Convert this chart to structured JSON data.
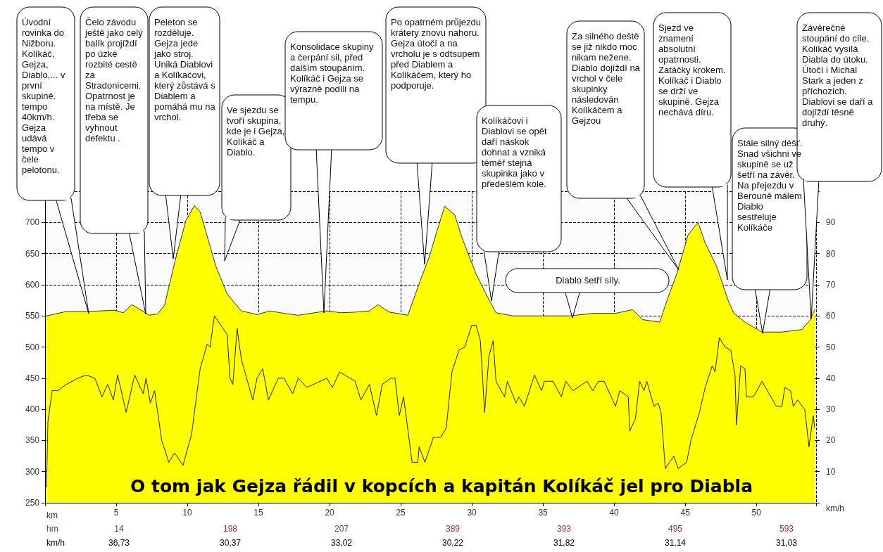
{
  "chart_data": {
    "type": "area",
    "title": "O tom jak Gejza řádil v kopcích a kapitán Kolíkáč jel pro Diabla",
    "xlabel": "km",
    "y2label": "km/h",
    "xlim": [
      0,
      54.2
    ],
    "xticks": [
      5,
      10,
      15,
      20,
      25,
      30,
      35,
      40,
      45,
      50
    ],
    "ylim": [
      250,
      750
    ],
    "yticks": [
      250,
      300,
      350,
      400,
      450,
      500,
      550,
      600,
      650,
      700
    ],
    "y2lim": [
      0,
      100
    ],
    "y2ticks": [
      10,
      20,
      30,
      40,
      50,
      60,
      70,
      80,
      90
    ],
    "grid": true,
    "series": [
      {
        "color": "#ffff00",
        "x": [
          0.1,
          1.5,
          2.9,
          4.9,
          5.5,
          6.1,
          6.9,
          7.3,
          7.9,
          8.4,
          9.2,
          9.9,
          10.5,
          10.9,
          12.0,
          12.8,
          13.8,
          14.9,
          15.8,
          16.8,
          17.8,
          19.8,
          20.8,
          21.8,
          22.8,
          23.4,
          24.2,
          25.0,
          25.5,
          26.4,
          27.0,
          27.6,
          28.1,
          28.8,
          29.3,
          30.3,
          31.2,
          31.7,
          32.9,
          35.0,
          36.9,
          38.5,
          40.1,
          41.3,
          42.0,
          43.2,
          43.8,
          44.4,
          45.2,
          45.9,
          46.4,
          47.2,
          48.0,
          48.4,
          49.2,
          50.4,
          51.8,
          53.2,
          53.8,
          54.1
        ],
        "values": [
          550,
          557,
          557,
          559,
          555,
          568,
          557,
          551,
          553,
          567,
          644,
          703,
          727,
          717,
          630,
          585,
          558,
          552,
          558,
          554,
          551,
          558,
          555,
          556,
          558,
          568,
          556,
          553,
          551,
          608,
          644,
          690,
          726,
          712,
          676,
          617,
          576,
          555,
          550,
          550,
          550,
          554,
          554,
          560,
          544,
          540,
          580,
          617,
          680,
          700,
          667,
          630,
          576,
          555,
          540,
          524,
          524,
          528,
          544,
          560
        ]
      },
      {
        "type": "line",
        "axis": "y2",
        "color": "#222222",
        "x": [
          0.1,
          0.2,
          0.5,
          0.9,
          1.5,
          2.3,
          2.9,
          3.5,
          4.0,
          4.4,
          4.8,
          5.1,
          5.7,
          6.3,
          6.9,
          7.1,
          7.4,
          7.7,
          8.2,
          8.7,
          9.1,
          9.7,
          10.3,
          10.9,
          11.4,
          11.6,
          11.9,
          12.8,
          13.0,
          13.2,
          13.5,
          13.8,
          14.6,
          14.9,
          15.3,
          15.7,
          16.4,
          16.8,
          17.4,
          17.8,
          18.4,
          19.8,
          20.2,
          20.7,
          21.8,
          22.2,
          22.8,
          23.3,
          23.7,
          24.3,
          24.6,
          24.9,
          25.2,
          25.6,
          25.8,
          26.2,
          26.3,
          26.7,
          27.3,
          27.8,
          28.2,
          28.6,
          29.1,
          29.5,
          30.0,
          30.3,
          30.6,
          30.9,
          31.2,
          31.5,
          31.7,
          32.3,
          32.5,
          33.1,
          33.3,
          33.7,
          34.4,
          34.9,
          35.1,
          35.7,
          36.3,
          36.6,
          37.1,
          38.1,
          38.5,
          38.9,
          39.3,
          40.1,
          40.4,
          41.0,
          41.1,
          41.5,
          41.8,
          42.1,
          42.3,
          42.8,
          43.1,
          43.3,
          43.6,
          44.2,
          44.5,
          45.1,
          45.4,
          46.0,
          46.4,
          46.9,
          47.1,
          47.4,
          47.8,
          48.2,
          48.5,
          48.6,
          48.9,
          49.2,
          49.3,
          49.8,
          50.4,
          51.4,
          51.8,
          52.0,
          52.4,
          52.6,
          52.9,
          53.4,
          53.7,
          54.0,
          54.1
        ],
        "values": [
          5,
          26,
          36,
          36,
          38,
          40,
          41,
          40,
          34,
          38,
          33,
          41,
          29,
          41,
          35,
          40,
          32,
          36,
          20,
          13,
          16,
          12,
          22,
          43,
          51,
          50,
          60,
          54,
          40,
          38,
          56,
          46,
          33,
          40,
          43,
          33,
          40,
          40,
          35,
          40,
          37,
          40,
          37,
          42,
          39,
          33,
          38,
          28,
          38,
          40,
          40,
          28,
          34,
          20,
          13,
          13,
          18,
          13,
          21,
          21,
          24,
          42,
          49,
          50,
          57,
          57,
          52,
          29,
          47,
          52,
          39,
          34,
          39,
          32,
          34,
          31,
          41,
          36,
          39,
          39,
          34,
          39,
          36,
          39,
          36,
          39,
          39,
          31,
          36,
          34,
          23,
          27,
          39,
          36,
          39,
          31,
          32,
          29,
          11,
          15,
          11,
          13,
          20,
          29,
          37,
          44,
          42,
          53,
          50,
          49,
          41,
          25,
          44,
          43,
          34,
          34,
          39,
          31,
          31,
          37,
          36,
          31,
          33,
          30,
          18,
          28,
          24
        ]
      }
    ],
    "annotations": [
      "Úvodní rovinka do Nižboru. Kolíkáč, Gejza, Diablo,... v první skupině. tempo 40km/h. Gejza udává tempo v čele pelotonu.",
      "Čelo závodu ještě jako celý balík projíždí po úzké rozbité cestě za Stradonicemi. Opatrnost je na místě. Je třeba se vyhnout defektu .",
      "Peleton se rozděluje. Gejza jede jako stroj. Uniká Diablovi a Kolíkaćovi, který zůstává s Diablem a pomáhá mu na vrchol.",
      "Ve sjezdu se tvoří skupina, kde je i Gejza, Kolíkáč a Diablo.",
      "Konsolidace skupiny a čerpání sil, před dalším stoupáním. Kolíkáč i Gejza se výrazně podíli na tempu.",
      "Po opatrném průjezdu krátery znovu nahoru. Gejza útočí a na vrcholu je s odtsupem před Diablem a Kolíkáčem, který ho podporuje.",
      "Kolíkáčovi i Diablovi se opět daří náskok dohnat a vzniká téměř stejná skupinka jako v předešlém kole.",
      "Diablo šetří síly.",
      "Za silného deště se již nikdo moc nikam nežene. Diablo dojíždí na vrchol v čele skupinky následován Kolíkáčem a Gejzou",
      "Sjezd ve znamení absolutní opatrnosti. Zatáčky krokem. Kolíkáč i Diablo se drží ve skupině. Gejza nechává díru.",
      "Stále silný déšť. Snad všichni ve skupině se už šetří na závěr. Na přejezdu v Berouně málem Diablo sestřeluje Kolíkáče",
      "Závěrečné stoupání do cíle. Kolíkáč vysílá Diabla do útoku. Útočí i Michal Stark a jeden z příchozích. Diablovi se daří a dojíždí těsně druhý.",
      "hm 14 198 207 389 393 495 593",
      "km/h 36,73 30,37 33,02 30,22 31,82 31,14 31,03"
    ]
  }
}
